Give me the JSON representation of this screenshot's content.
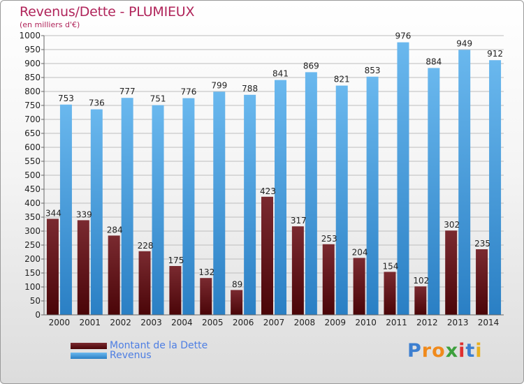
{
  "header": {
    "title": "Revenus/Dette - PLUMIEUX",
    "subtitle": "(en milliers d'€)"
  },
  "colors": {
    "debt_top": "#7a2a30",
    "debt_bottom": "#4a0508",
    "revenue_top": "#6ab8ee",
    "revenue_bottom": "#2a7fc4",
    "grid": "#bdbdbd",
    "text": "#222222"
  },
  "chart_data": {
    "type": "bar",
    "title": "Revenus/Dette - PLUMIEUX",
    "subtitle": "(en milliers d'€)",
    "xlabel": "",
    "ylabel": "",
    "ylim": [
      0,
      1000
    ],
    "ytick_step": 50,
    "grid": true,
    "categories": [
      "2000",
      "2001",
      "2002",
      "2003",
      "2004",
      "2005",
      "2006",
      "2007",
      "2008",
      "2009",
      "2010",
      "2011",
      "2012",
      "2013",
      "2014"
    ],
    "series": [
      {
        "name": "Montant de la Dette",
        "values": [
          344,
          339,
          284,
          228,
          175,
          132,
          89,
          423,
          317,
          253,
          204,
          154,
          102,
          302,
          235
        ]
      },
      {
        "name": "Revenus",
        "values": [
          753,
          736,
          777,
          751,
          776,
          799,
          788,
          841,
          869,
          821,
          853,
          976,
          884,
          949,
          912
        ]
      }
    ],
    "legend_position": "bottom-left"
  },
  "legend": {
    "items": [
      {
        "label": "Montant de la Dette"
      },
      {
        "label": "Revenus"
      }
    ]
  },
  "logo": {
    "letters": [
      "P",
      "r",
      "o",
      "x",
      "i",
      "t",
      "i"
    ],
    "colors": [
      "#3d7fd0",
      "#f08a1c",
      "#f08a1c",
      "#3da03d",
      "#e03030",
      "#3d7fd0",
      "#e8b020"
    ]
  }
}
